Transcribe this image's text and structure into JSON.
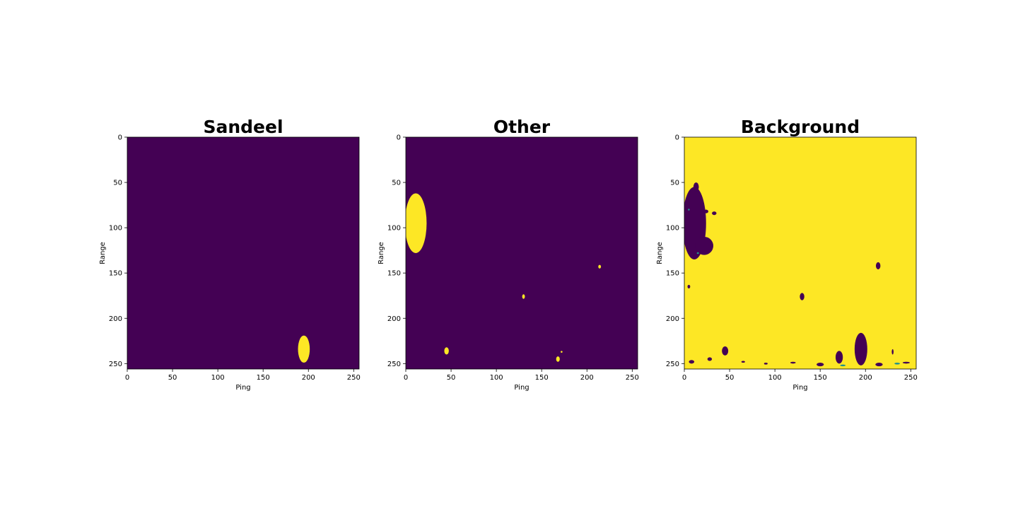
{
  "colors": {
    "low": "#440154",
    "high": "#fde725",
    "edge": "#21918c"
  },
  "chart_data": [
    {
      "type": "heatmap",
      "title": "Sandeel",
      "xlabel": "Ping",
      "ylabel": "Range",
      "xlim": [
        0,
        256
      ],
      "ylim": [
        256,
        0
      ],
      "xticks": [
        "0",
        "50",
        "100",
        "150",
        "200",
        "250"
      ],
      "yticks": [
        "0",
        "50",
        "100",
        "150",
        "200",
        "250"
      ],
      "background_value": 0,
      "blobs": [
        {
          "cx": 195,
          "cy": 234,
          "rx": 6.5,
          "ry": 15,
          "value": 1
        }
      ]
    },
    {
      "type": "heatmap",
      "title": "Other",
      "xlabel": "Ping",
      "ylabel": "Range",
      "xlim": [
        0,
        256
      ],
      "ylim": [
        256,
        0
      ],
      "xticks": [
        "0",
        "50",
        "100",
        "150",
        "200",
        "250"
      ],
      "yticks": [
        "0",
        "50",
        "100",
        "150",
        "200",
        "250"
      ],
      "background_value": 0,
      "blobs": [
        {
          "cx": 11,
          "cy": 95,
          "rx": 12,
          "ry": 33,
          "value": 1
        },
        {
          "cx": 45,
          "cy": 236,
          "rx": 2.5,
          "ry": 4,
          "value": 1
        },
        {
          "cx": 130,
          "cy": 176,
          "rx": 1.5,
          "ry": 2.5,
          "value": 1
        },
        {
          "cx": 168,
          "cy": 245,
          "rx": 2,
          "ry": 3,
          "value": 1
        },
        {
          "cx": 172,
          "cy": 237,
          "rx": 1,
          "ry": 1,
          "value": 1
        },
        {
          "cx": 214,
          "cy": 143,
          "rx": 1.5,
          "ry": 2,
          "value": 1
        }
      ]
    },
    {
      "type": "heatmap",
      "title": "Background",
      "xlabel": "Ping",
      "ylabel": "Range",
      "xlim": [
        0,
        256
      ],
      "ylim": [
        256,
        0
      ],
      "xticks": [
        "0",
        "50",
        "100",
        "150",
        "200",
        "250"
      ],
      "yticks": [
        "0",
        "50",
        "100",
        "150",
        "200",
        "250"
      ],
      "background_value": 1,
      "blobs": [
        {
          "cx": 11,
          "cy": 95,
          "rx": 13,
          "ry": 40,
          "value": 0
        },
        {
          "cx": 22,
          "cy": 120,
          "rx": 10,
          "ry": 10,
          "value": 0
        },
        {
          "cx": 13,
          "cy": 55,
          "rx": 3,
          "ry": 5,
          "value": 0
        },
        {
          "cx": 24,
          "cy": 82,
          "rx": 2.5,
          "ry": 2,
          "value": 0
        },
        {
          "cx": 33,
          "cy": 84,
          "rx": 2.5,
          "ry": 2,
          "value": 0
        },
        {
          "cx": 5,
          "cy": 165,
          "rx": 1.5,
          "ry": 2,
          "value": 0
        },
        {
          "cx": 45,
          "cy": 236,
          "rx": 3.5,
          "ry": 5,
          "value": 0
        },
        {
          "cx": 130,
          "cy": 176,
          "rx": 2.5,
          "ry": 4,
          "value": 0
        },
        {
          "cx": 171,
          "cy": 243,
          "rx": 4,
          "ry": 7,
          "value": 0
        },
        {
          "cx": 195,
          "cy": 234,
          "rx": 7,
          "ry": 18,
          "value": 0
        },
        {
          "cx": 214,
          "cy": 142,
          "rx": 2.5,
          "ry": 4,
          "value": 0
        },
        {
          "cx": 28,
          "cy": 245,
          "rx": 2.5,
          "ry": 2,
          "value": 0
        },
        {
          "cx": 8,
          "cy": 248,
          "rx": 3,
          "ry": 2,
          "value": 0
        },
        {
          "cx": 230,
          "cy": 237,
          "rx": 1,
          "ry": 3,
          "value": 0
        },
        {
          "cx": 65,
          "cy": 248,
          "rx": 2,
          "ry": 1,
          "value": 0
        },
        {
          "cx": 90,
          "cy": 250,
          "rx": 2,
          "ry": 1,
          "value": 0
        },
        {
          "cx": 120,
          "cy": 249,
          "rx": 3,
          "ry": 1,
          "value": 0
        },
        {
          "cx": 150,
          "cy": 251,
          "rx": 4,
          "ry": 2,
          "value": 0
        },
        {
          "cx": 215,
          "cy": 251,
          "rx": 4,
          "ry": 2,
          "value": 0
        },
        {
          "cx": 245,
          "cy": 249,
          "rx": 4,
          "ry": 1,
          "value": 0
        },
        {
          "cx": 5,
          "cy": 80,
          "rx": 1,
          "ry": 1,
          "value": 0.5
        },
        {
          "cx": 15,
          "cy": 128,
          "rx": 1.2,
          "ry": 1,
          "value": 0.5
        },
        {
          "cx": 175,
          "cy": 252,
          "rx": 3,
          "ry": 1,
          "value": 0.5
        },
        {
          "cx": 235,
          "cy": 250,
          "rx": 3,
          "ry": 1,
          "value": 0.5
        }
      ]
    }
  ]
}
